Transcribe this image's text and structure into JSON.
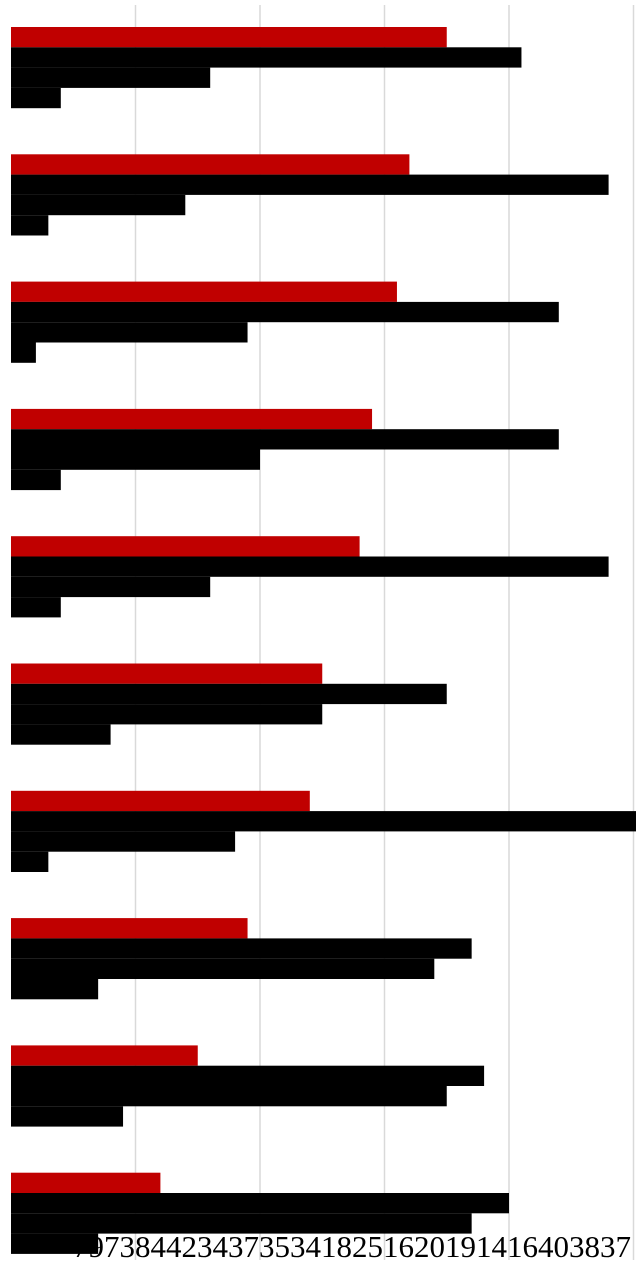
{
  "chart_data": {
    "type": "bar",
    "orientation": "horizontal",
    "grid": true,
    "legend": "none",
    "xlim": [
      0,
      50
    ],
    "gridlines_x": [
      10,
      20,
      30,
      40,
      50
    ],
    "categories": [
      "",
      "",
      "",
      "",
      "",
      "",
      "",
      "",
      "",
      ""
    ],
    "series": [
      {
        "color": "#c00000",
        "values": [
          35,
          32,
          31,
          29,
          28,
          25,
          24,
          19,
          15,
          12
        ]
      },
      {
        "color": "#000000",
        "values": [
          41,
          48,
          44,
          44,
          48,
          35,
          51,
          37,
          38,
          40
        ]
      },
      {
        "color": "#000000",
        "values": [
          16,
          14,
          19,
          20,
          16,
          25,
          18,
          34,
          35,
          37
        ]
      },
      {
        "color": "#000000",
        "values": [
          4,
          3,
          2,
          4,
          4,
          8,
          3,
          7,
          9,
          7
        ]
      }
    ],
    "bottom_text": "797384423437353418251620191416403837"
  }
}
